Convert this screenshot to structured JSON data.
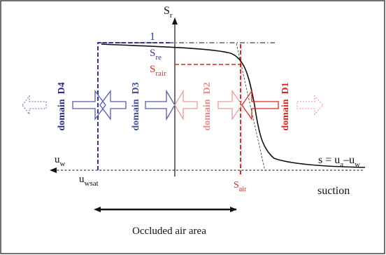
{
  "axes": {
    "y_label": {
      "main": "S",
      "sub": "r"
    },
    "left_label": {
      "main": "u",
      "sub": "w"
    },
    "x_label": "suction",
    "formula": {
      "s": "s = u",
      "a": "a",
      "minus": "–u",
      "w": "w"
    }
  },
  "markers": {
    "one": "1",
    "s_re": {
      "main": "S",
      "sub": "re"
    },
    "s_rair": {
      "main": "S",
      "sub": "rair"
    },
    "u_wsat": {
      "main": "u",
      "sub": "wsat"
    },
    "s_air": {
      "main": "S",
      "sub": "air"
    }
  },
  "domains": [
    {
      "label": "domain  D4",
      "color": "#2a2a8a"
    },
    {
      "label": "domain  D3",
      "color": "#3d4f9e"
    },
    {
      "label": "domain  D2",
      "color": "#f08a8a"
    },
    {
      "label": "domain  D1",
      "color": "#d7261e"
    }
  ],
  "occluded_label": "Occluded air area",
  "colors": {
    "blue": "#3535a0",
    "red": "#e0281e",
    "pink": "#f3a0a0",
    "black": "#111111"
  }
}
